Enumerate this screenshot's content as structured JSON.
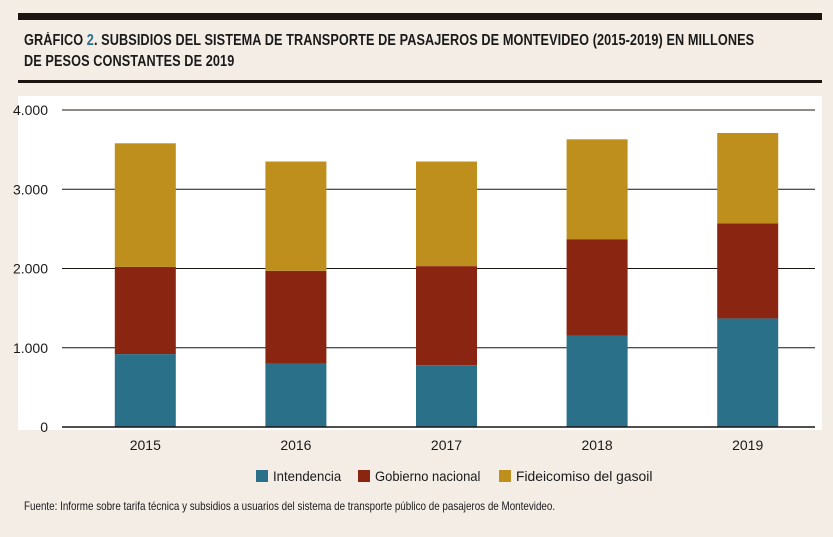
{
  "title": {
    "prefix": "GRÁFICO ",
    "number": "2",
    "text": ". SUBSIDIOS DEL SISTEMA DE TRANSPORTE DE PASAJEROS DE MONTEVIDEO (2015-2019) EN MILLONES",
    "line2": "DE PESOS CONSTANTES DE 2019"
  },
  "source": "Fuente: Informe sobre tarifa técnica y subsidios a usuarios del sistema de transporte público de pasajeros de Montevideo.",
  "colors": {
    "Intendencia": "#2a7089",
    "Gobierno nacional": "#8a2512",
    "Fideicomiso del gasoil": "#bf8f1e",
    "grid": "#1c1410",
    "plot_bg": "#ffffff"
  },
  "chart_data": {
    "type": "bar",
    "stacked": true,
    "categories": [
      "2015",
      "2016",
      "2017",
      "2018",
      "2019"
    ],
    "series": [
      {
        "name": "Intendencia",
        "values": [
          920,
          800,
          780,
          1150,
          1370
        ]
      },
      {
        "name": "Gobierno nacional",
        "values": [
          1100,
          1170,
          1250,
          1220,
          1200
        ]
      },
      {
        "name": "Fideicomiso del gasoil",
        "values": [
          1560,
          1380,
          1320,
          1260,
          1140
        ]
      }
    ],
    "ylim": [
      0,
      4000
    ],
    "yticks": [
      0,
      1000,
      2000,
      3000,
      4000
    ],
    "ytick_labels": [
      "0",
      "1.000",
      "2.000",
      "3.000",
      "4.000"
    ],
    "xlabel": "",
    "ylabel": "",
    "grid": true,
    "legend_position": "bottom"
  }
}
